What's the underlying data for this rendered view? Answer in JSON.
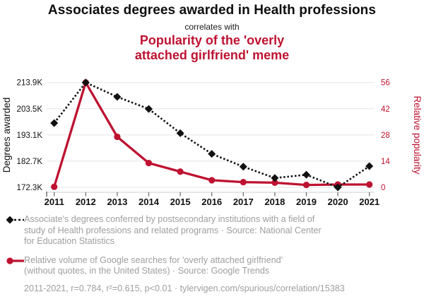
{
  "header": {
    "title": "Associates degrees awarded in Health professions",
    "connector": "correlates with",
    "subtitle_lines": [
      "Popularity of the 'overly",
      "attached girlfriend' meme"
    ]
  },
  "colors": {
    "accent_red": "#be1231",
    "series_black": "#111111",
    "legend_gray": "#9e9e9e",
    "gridline": "#e5e5e5",
    "axis_line": "#cccccc",
    "tick_mark": "#666666"
  },
  "chart_data": {
    "type": "line",
    "title": "Associates degrees awarded in Health professions correlates with Popularity of the 'overly attached girlfriend' meme",
    "x": [
      2011,
      2012,
      2013,
      2014,
      2015,
      2016,
      2017,
      2018,
      2019,
      2020,
      2021
    ],
    "series": [
      {
        "name": "Associate's degrees conferred in Health professions",
        "axis": "left",
        "marker": "diamond",
        "line_style": "dashed",
        "color": "#111111",
        "unit": "K degrees",
        "values": [
          197.8,
          213.9,
          208.2,
          203.4,
          193.8,
          185.6,
          180.5,
          176.0,
          177.3,
          172.3,
          180.7
        ]
      },
      {
        "name": "Google searches for 'overly attached girlfriend'",
        "axis": "right",
        "marker": "circle",
        "line_style": "solid",
        "color": "#be1231",
        "unit": "relative popularity",
        "values": [
          0.3,
          56,
          27,
          13,
          8.4,
          3.8,
          2.8,
          2.5,
          1.3,
          1.5,
          1.5
        ]
      }
    ],
    "left_axis": {
      "title": "Degrees awarded",
      "min": 172.3,
      "max": 213.9,
      "tick_labels": [
        "213.9K",
        "203.5K",
        "193.1K",
        "182.7K",
        "172.3K"
      ]
    },
    "right_axis": {
      "title": "Relative popularity",
      "min": 0,
      "max": 56,
      "tick_labels": [
        "56",
        "42",
        "28",
        "14",
        "0"
      ]
    },
    "grid": "horizontal",
    "legend_position": "bottom"
  },
  "legend": {
    "items": [
      {
        "marker": "black-diamond-dashed",
        "lines": [
          "Associate's degrees conferred by postsecondary institutions with a field of",
          "study of Health professions and related programs · Source: National Center",
          "for Education Statistics"
        ]
      },
      {
        "marker": "red-circle-solid",
        "lines": [
          "Relative volume of Google searches for 'overly attached girlfriend'",
          "(without quotes, in the United States) · Source: Google Trends"
        ]
      }
    ],
    "footnote": "2011-2021, r=0.784, r²=0.615, p<0.01 · tylervigen.com/spurious/correlation/15383"
  }
}
